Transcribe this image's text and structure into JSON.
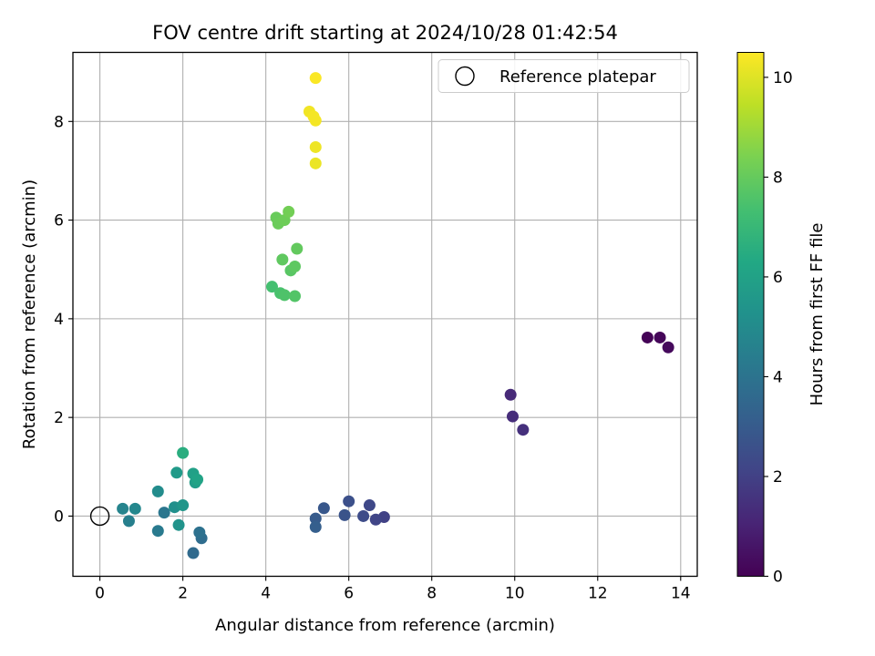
{
  "chart_data": {
    "type": "scatter",
    "title": "FOV centre drift starting at 2024/10/28 01:42:54",
    "xlabel": "Angular distance from reference (arcmin)",
    "ylabel": "Rotation from reference (arcmin)",
    "xlim": [
      -0.65,
      14.4
    ],
    "ylim": [
      -1.22,
      9.4
    ],
    "xticks": [
      0,
      2,
      4,
      6,
      8,
      10,
      12,
      14
    ],
    "yticks": [
      0,
      2,
      4,
      6,
      8
    ],
    "grid": true,
    "legend": {
      "position": "top-right",
      "entries": [
        "Reference platepar"
      ]
    },
    "reference": {
      "x": 0,
      "y": 0
    },
    "colorbar": {
      "label": "Hours from first FF file",
      "min": 0,
      "max": 10.5,
      "ticks": [
        0,
        2,
        4,
        6,
        8,
        10
      ],
      "colormap": "viridis"
    },
    "points": [
      {
        "x": 13.2,
        "y": 3.62,
        "t": 0.05
      },
      {
        "x": 13.5,
        "y": 3.62,
        "t": 0.15
      },
      {
        "x": 13.7,
        "y": 3.42,
        "t": 0.25
      },
      {
        "x": 9.9,
        "y": 2.46,
        "t": 1.25
      },
      {
        "x": 9.95,
        "y": 2.02,
        "t": 1.35
      },
      {
        "x": 10.2,
        "y": 1.75,
        "t": 1.45
      },
      {
        "x": 6.85,
        "y": -0.02,
        "t": 2.05
      },
      {
        "x": 6.65,
        "y": -0.07,
        "t": 2.15
      },
      {
        "x": 6.5,
        "y": 0.22,
        "t": 2.25
      },
      {
        "x": 6.35,
        "y": 0.0,
        "t": 2.4
      },
      {
        "x": 6.0,
        "y": 0.3,
        "t": 2.55
      },
      {
        "x": 5.9,
        "y": 0.02,
        "t": 2.7
      },
      {
        "x": 5.4,
        "y": 0.16,
        "t": 2.85
      },
      {
        "x": 5.2,
        "y": -0.05,
        "t": 3.0
      },
      {
        "x": 5.2,
        "y": -0.22,
        "t": 3.15
      },
      {
        "x": 2.25,
        "y": -0.75,
        "t": 3.6
      },
      {
        "x": 2.45,
        "y": -0.45,
        "t": 3.75
      },
      {
        "x": 2.4,
        "y": -0.33,
        "t": 3.9
      },
      {
        "x": 1.55,
        "y": 0.07,
        "t": 4.1
      },
      {
        "x": 1.4,
        "y": -0.3,
        "t": 4.3
      },
      {
        "x": 0.7,
        "y": -0.1,
        "t": 4.5
      },
      {
        "x": 0.55,
        "y": 0.15,
        "t": 4.7
      },
      {
        "x": 0.85,
        "y": 0.15,
        "t": 4.85
      },
      {
        "x": 1.4,
        "y": 0.5,
        "t": 5.05
      },
      {
        "x": 1.8,
        "y": 0.18,
        "t": 5.2
      },
      {
        "x": 1.9,
        "y": -0.18,
        "t": 5.35
      },
      {
        "x": 2.0,
        "y": 0.22,
        "t": 5.5
      },
      {
        "x": 1.85,
        "y": 0.88,
        "t": 5.65
      },
      {
        "x": 2.3,
        "y": 0.68,
        "t": 5.8
      },
      {
        "x": 2.25,
        "y": 0.86,
        "t": 5.95
      },
      {
        "x": 2.35,
        "y": 0.74,
        "t": 6.05
      },
      {
        "x": 2.0,
        "y": 1.28,
        "t": 6.55
      },
      {
        "x": 4.15,
        "y": 4.65,
        "t": 7.35
      },
      {
        "x": 4.35,
        "y": 4.52,
        "t": 7.45
      },
      {
        "x": 4.45,
        "y": 4.48,
        "t": 7.55
      },
      {
        "x": 4.7,
        "y": 4.46,
        "t": 7.65
      },
      {
        "x": 4.6,
        "y": 4.98,
        "t": 7.75
      },
      {
        "x": 4.7,
        "y": 5.06,
        "t": 7.85
      },
      {
        "x": 4.4,
        "y": 5.2,
        "t": 7.9
      },
      {
        "x": 4.75,
        "y": 5.42,
        "t": 7.95
      },
      {
        "x": 4.25,
        "y": 6.05,
        "t": 8.05
      },
      {
        "x": 4.3,
        "y": 5.93,
        "t": 8.1
      },
      {
        "x": 4.45,
        "y": 6.0,
        "t": 8.15
      },
      {
        "x": 4.55,
        "y": 6.17,
        "t": 8.25
      },
      {
        "x": 5.2,
        "y": 7.15,
        "t": 10.2
      },
      {
        "x": 5.2,
        "y": 7.48,
        "t": 10.25
      },
      {
        "x": 5.05,
        "y": 8.2,
        "t": 10.3
      },
      {
        "x": 5.2,
        "y": 8.02,
        "t": 10.35
      },
      {
        "x": 5.15,
        "y": 8.1,
        "t": 10.35
      },
      {
        "x": 5.2,
        "y": 8.88,
        "t": 10.45
      }
    ]
  }
}
